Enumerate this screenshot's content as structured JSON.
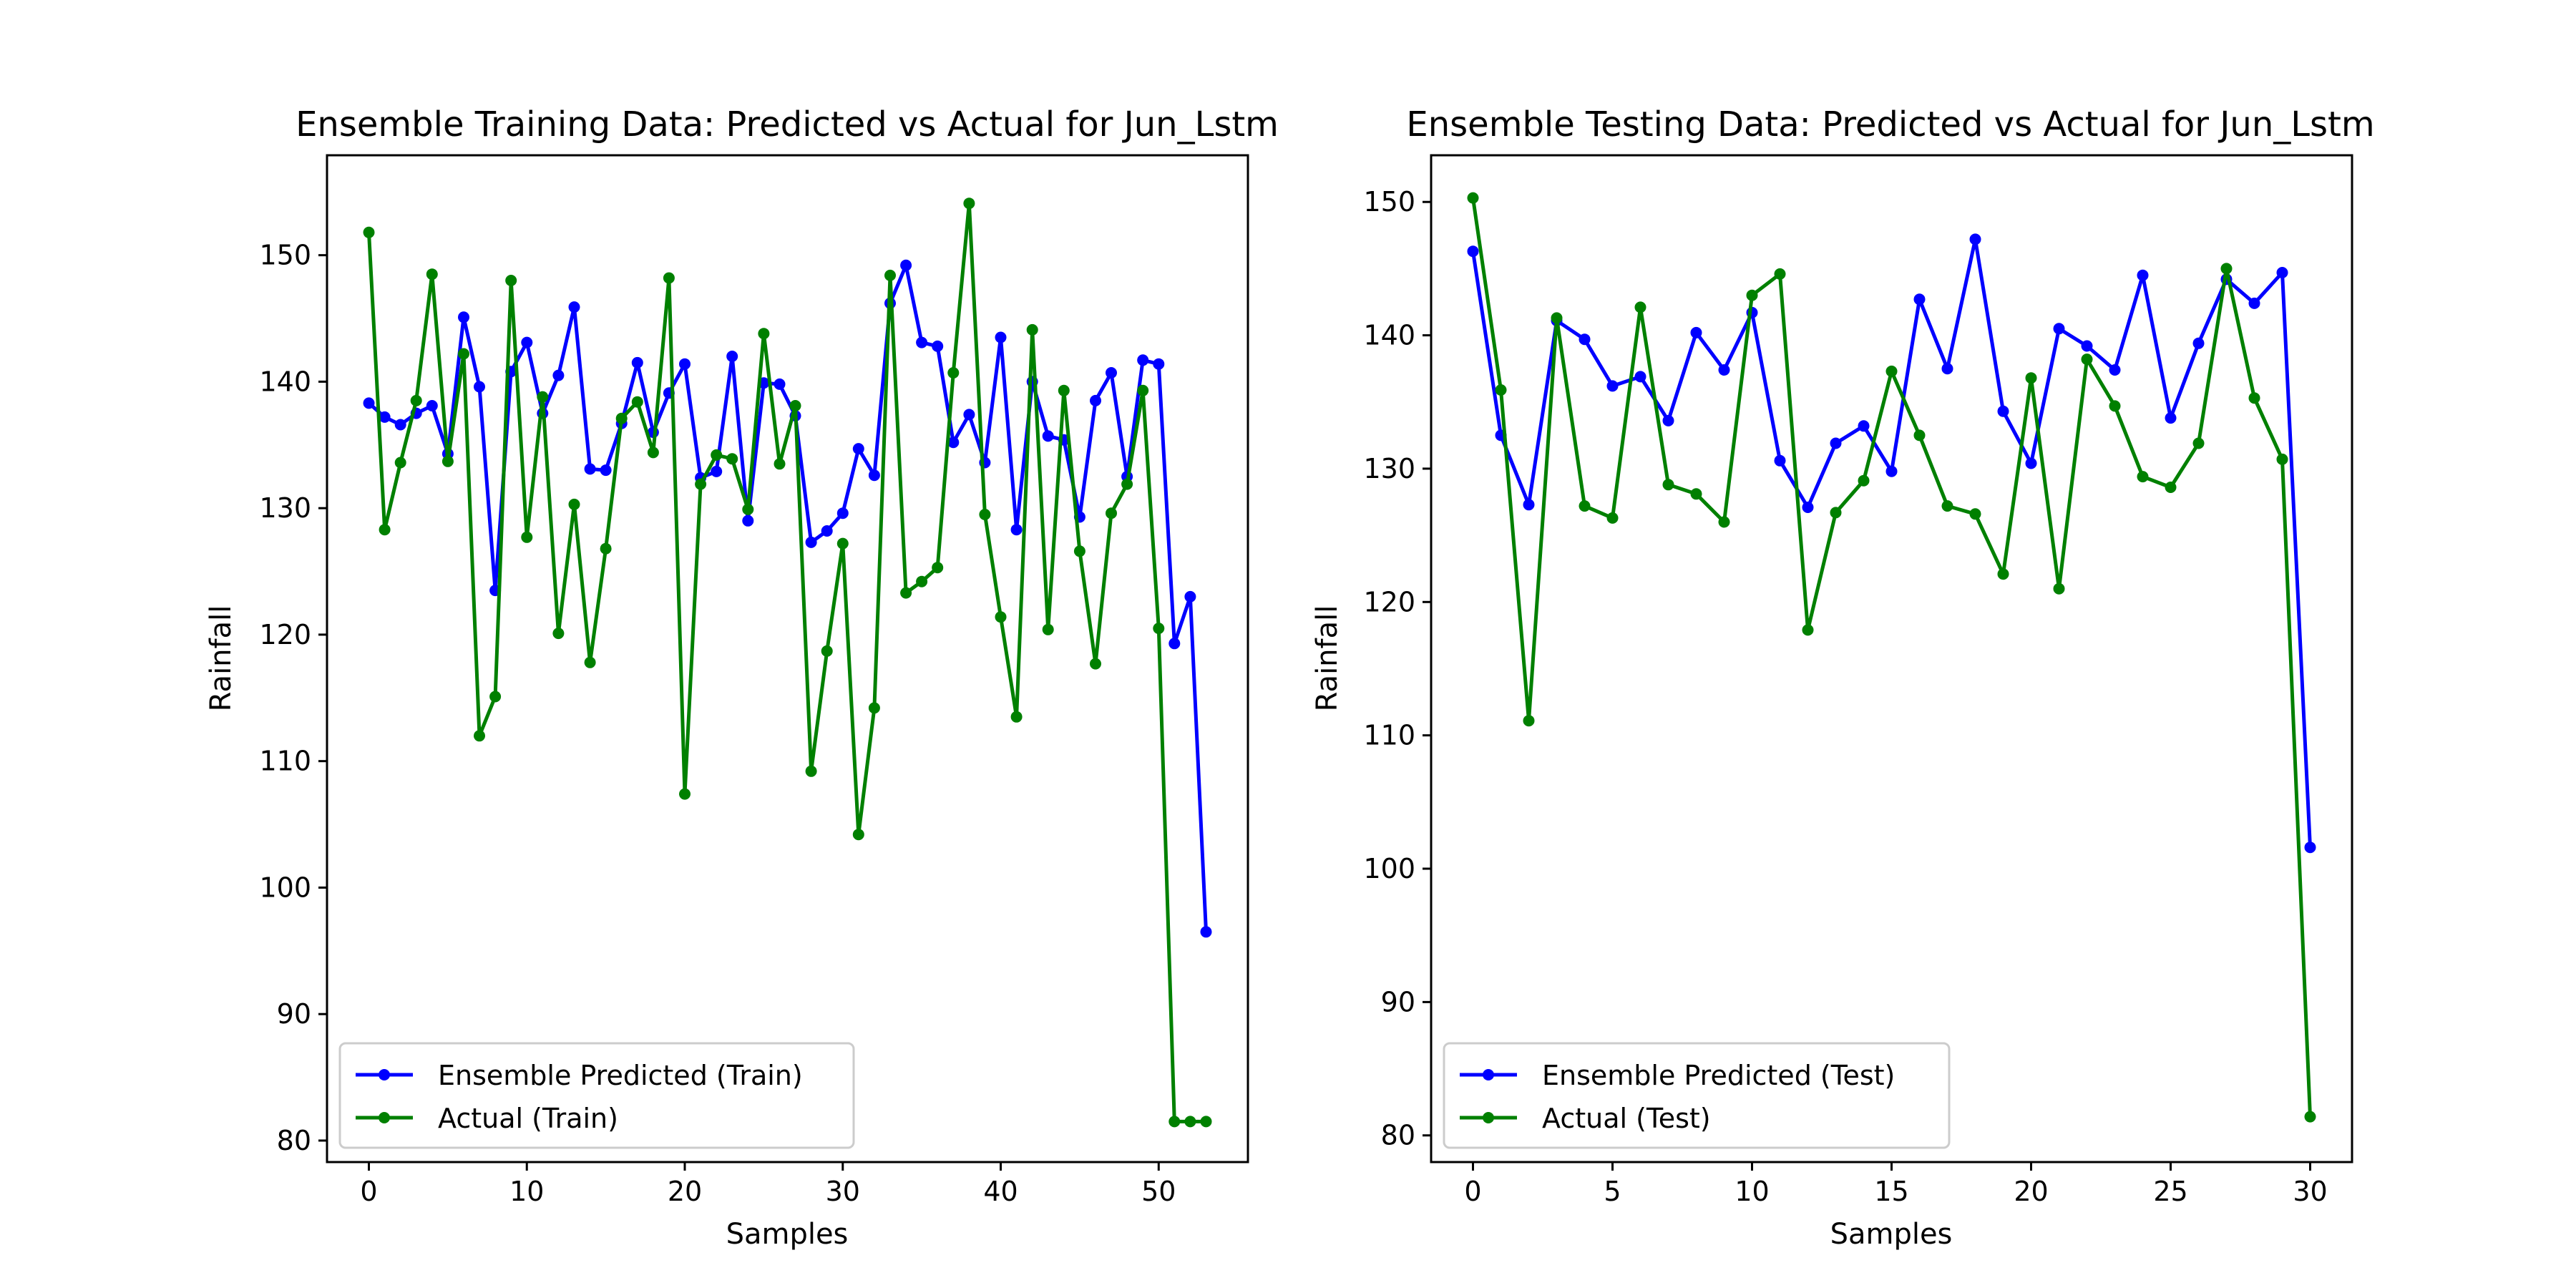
{
  "chart_data": [
    {
      "type": "line",
      "title": "Ensemble Training Data: Predicted vs Actual for Jun_Lstm",
      "xlabel": "Samples",
      "ylabel": "Rainfall",
      "xlim": [
        -2.65,
        55.65
      ],
      "ylim": [
        78.3,
        157.9
      ],
      "xticks": [
        0,
        10,
        20,
        30,
        40,
        50
      ],
      "yticks": [
        80,
        90,
        100,
        110,
        120,
        130,
        140,
        150
      ],
      "grid": false,
      "legend_position": "lower-left",
      "series": [
        {
          "name": "Ensemble Predicted (Train)",
          "color": "#0000ff",
          "values": [
            138.3,
            137.2,
            136.6,
            137.5,
            138.1,
            134.3,
            145.1,
            139.6,
            123.5,
            140.8,
            143.1,
            137.5,
            140.5,
            145.9,
            133.1,
            133.0,
            136.7,
            141.5,
            136.0,
            139.1,
            141.4,
            132.4,
            132.9,
            142.0,
            129.0,
            139.9,
            139.8,
            137.3,
            127.3,
            128.2,
            129.6,
            134.7,
            132.6,
            146.2,
            149.2,
            143.1,
            142.8,
            135.2,
            137.4,
            133.6,
            143.5,
            128.3,
            140.0,
            135.7,
            135.4,
            129.3,
            138.5,
            140.7,
            132.5,
            141.7,
            141.4,
            119.3,
            123.0,
            96.5
          ]
        },
        {
          "name": "Actual (Train)",
          "color": "#008000",
          "values": [
            151.8,
            128.3,
            133.6,
            138.5,
            148.5,
            133.7,
            142.2,
            112.0,
            115.1,
            148.0,
            127.7,
            138.8,
            120.1,
            130.3,
            117.8,
            126.8,
            137.1,
            138.4,
            134.4,
            148.2,
            107.4,
            131.9,
            134.2,
            133.9,
            129.9,
            143.8,
            133.5,
            138.1,
            109.2,
            118.7,
            127.2,
            104.2,
            114.2,
            148.4,
            123.3,
            124.2,
            125.3,
            140.7,
            154.1,
            129.5,
            121.4,
            113.5,
            144.1,
            120.4,
            139.3,
            126.6,
            117.7,
            129.6,
            131.9,
            139.3,
            120.5,
            81.5,
            81.5,
            81.5
          ]
        }
      ]
    },
    {
      "type": "line",
      "title": "Ensemble Testing Data: Predicted vs Actual for Jun_Lstm",
      "xlabel": "Samples",
      "ylabel": "Rainfall",
      "xlim": [
        -1.5,
        31.5
      ],
      "ylim": [
        78.0,
        153.5
      ],
      "xticks": [
        0,
        5,
        10,
        15,
        20,
        25,
        30
      ],
      "yticks": [
        80,
        90,
        100,
        110,
        120,
        130,
        140,
        150
      ],
      "grid": false,
      "legend_position": "lower-left",
      "series": [
        {
          "name": "Ensemble Predicted (Test)",
          "color": "#0000ff",
          "values": [
            146.3,
            132.5,
            127.3,
            141.1,
            139.7,
            136.2,
            136.9,
            133.6,
            140.2,
            137.4,
            141.7,
            130.6,
            127.1,
            131.9,
            133.2,
            129.8,
            142.7,
            137.5,
            147.2,
            134.3,
            130.4,
            140.5,
            139.2,
            137.4,
            144.5,
            133.8,
            139.4,
            144.2,
            142.4,
            144.7,
            101.6
          ]
        },
        {
          "name": "Actual (Test)",
          "color": "#008000",
          "values": [
            150.3,
            135.9,
            111.1,
            141.3,
            127.2,
            126.3,
            142.1,
            128.8,
            128.1,
            126.0,
            143.0,
            144.6,
            117.9,
            126.7,
            129.1,
            137.3,
            132.5,
            127.2,
            126.6,
            122.1,
            136.8,
            121.0,
            138.2,
            134.7,
            129.4,
            128.6,
            131.9,
            145.0,
            135.3,
            130.7,
            81.4
          ]
        }
      ]
    }
  ]
}
